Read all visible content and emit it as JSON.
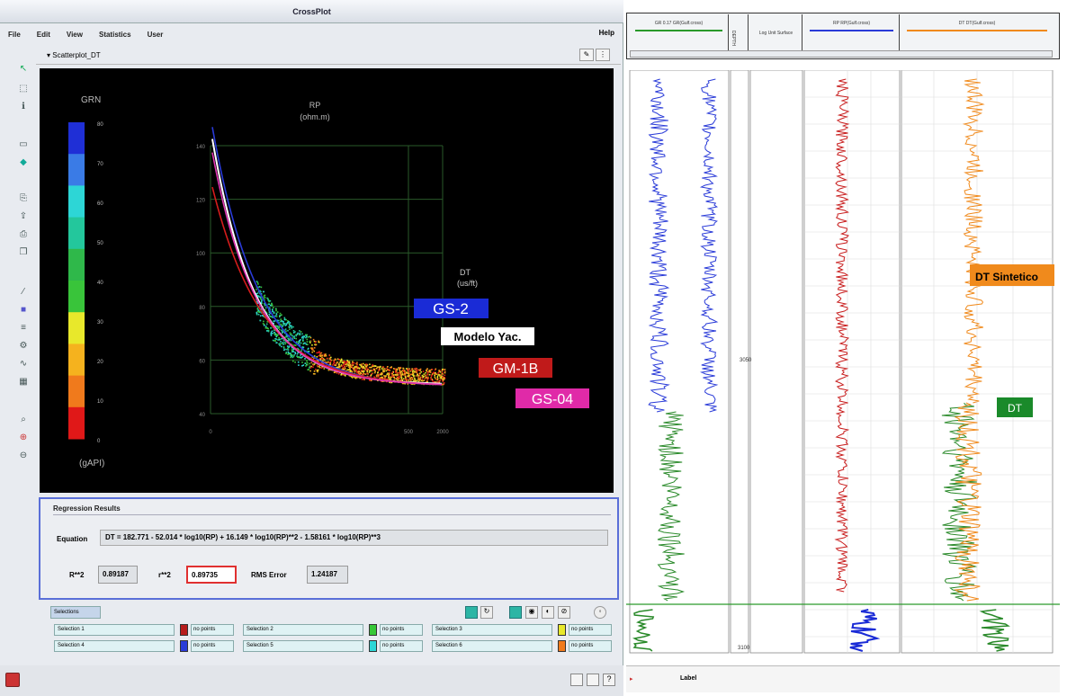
{
  "window": {
    "title": "CrossPlot"
  },
  "menu": {
    "items": [
      "File",
      "Edit",
      "View",
      "Statistics",
      "User"
    ],
    "help": "Help"
  },
  "tab": {
    "label": "Scatterplot_DT"
  },
  "colorbar": {
    "title": "GRN",
    "unit": "(gAPI)",
    "ticks": [
      "80",
      "70",
      "60",
      "50",
      "40",
      "30",
      "20",
      "10",
      "0"
    ],
    "colors": [
      "#1f2fd6",
      "#3a7be6",
      "#2dd6d6",
      "#23c79c",
      "#2fb84a",
      "#39c43a",
      "#e8e82b",
      "#f5b21e",
      "#f07a1c",
      "#e01818"
    ]
  },
  "plot": {
    "xlabel_title": "RP",
    "xlabel_unit": "(ohm.m)",
    "ylabel_title": "DT",
    "ylabel_unit": "(us/ft)",
    "yticks": [
      "140",
      "120",
      "100",
      "80",
      "60",
      "40"
    ],
    "xticks": [
      "0",
      "500",
      "2000"
    ]
  },
  "chart_data": {
    "type": "scatter",
    "title": "",
    "xlabel": "RP (ohm.m)",
    "ylabel": "DT (us/ft)",
    "ylim": [
      40,
      140
    ],
    "series": [
      {
        "name": "GS-2",
        "color": "#2a3bd8",
        "curve": true
      },
      {
        "name": "Modelo Yac.",
        "color": "#ffffff",
        "curve": true
      },
      {
        "name": "GM-1B",
        "color": "#d61c1c",
        "curve": true
      },
      {
        "name": "GS-04",
        "color": "#e036b3",
        "curve": true
      }
    ]
  },
  "labels": {
    "gs2": "GS-2",
    "modelo": "Modelo Yac.",
    "gm1b": "GM-1B",
    "gs04": "GS-04"
  },
  "regression": {
    "title": "Regression Results",
    "equation_label": "Equation",
    "equation": "DT = 182.771 - 52.014 * log10(RP) + 16.149 * log10(RP)**2 - 1.58161 * log10(RP)**3",
    "R2_label": "R**2",
    "R2": "0.89187",
    "r2_label": "r**2",
    "r2": "0.89735",
    "rms_label": "RMS Error",
    "rms": "1.24187"
  },
  "selection": {
    "header": "Selections",
    "rows": [
      [
        {
          "name": "Selection 1",
          "color": "#b71c1c",
          "points": "no points"
        },
        {
          "name": "Selection 2",
          "color": "#37c837",
          "points": "no points"
        },
        {
          "name": "Selection 3",
          "color": "#e8e82b",
          "points": "no points"
        }
      ],
      [
        {
          "name": "Selection 4",
          "color": "#2a3bd8",
          "points": "no points"
        },
        {
          "name": "Selection 5",
          "color": "#2dd6d6",
          "points": "no points"
        },
        {
          "name": "Selection 6",
          "color": "#f07a1c",
          "points": "no points"
        }
      ]
    ]
  },
  "log": {
    "tracks": [
      "GR 0.17 GR(Gulf.cross)",
      "DEPTH",
      "Log Unit Surface",
      "RP RP(Gulf.cross)",
      "DT DT(Gulf.cross)"
    ],
    "depth_marks": [
      "",
      "3050",
      "3100"
    ],
    "label_dt_sintetico": "DT Sintetico",
    "label_dt": "DT",
    "bottom_text": "Label"
  }
}
